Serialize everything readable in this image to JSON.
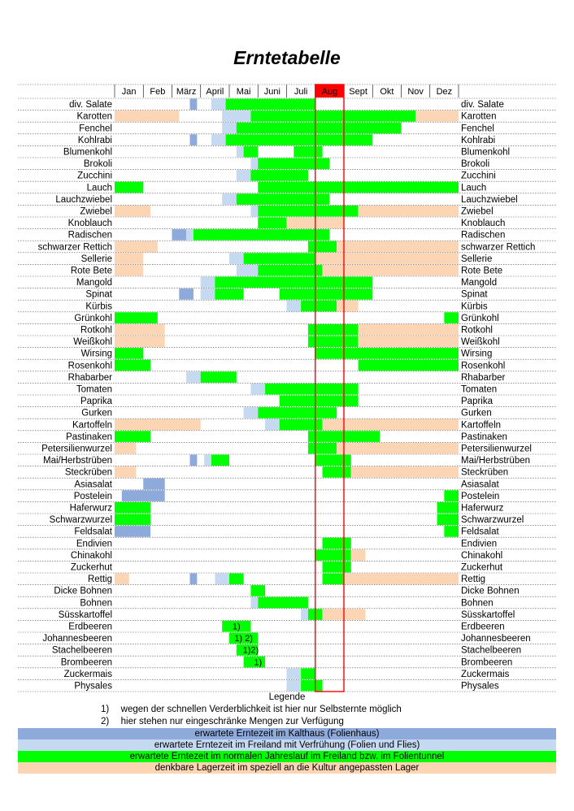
{
  "title": "Erntetabelle",
  "months": [
    "Jan",
    "Feb",
    "März",
    "April",
    "Mai",
    "Juni",
    "Juli",
    "Aug",
    "Sept",
    "Okt",
    "Nov",
    "Dez"
  ],
  "highlight_month": "Aug",
  "colors": {
    "kalthaus": "#8EAADB",
    "verfruehung": "#C5D9F1",
    "freiland": "#00FF00",
    "lager": "#FCD5B4",
    "highlight": "#FF0000"
  },
  "chart_data": {
    "type": "table",
    "time_unit": "Monat (Wochenraster)",
    "rows": [
      {
        "name": "div. Salate",
        "segments": [
          {
            "from": 10.5,
            "to": 11.5,
            "color": "kalthaus"
          },
          {
            "from": 13.5,
            "to": 15.5,
            "color": "verfruehung"
          },
          {
            "from": 15.5,
            "to": 28,
            "color": "freiland"
          }
        ]
      },
      {
        "name": "Karotten",
        "segments": [
          {
            "from": 0,
            "to": 9,
            "color": "lager"
          },
          {
            "from": 15,
            "to": 19,
            "color": "verfruehung"
          },
          {
            "from": 19,
            "to": 42,
            "color": "freiland"
          },
          {
            "from": 42,
            "to": 48,
            "color": "lager"
          }
        ]
      },
      {
        "name": "Fenchel",
        "segments": [
          {
            "from": 15,
            "to": 17,
            "color": "verfruehung"
          },
          {
            "from": 17,
            "to": 40,
            "color": "freiland"
          }
        ]
      },
      {
        "name": "Kohlrabi",
        "segments": [
          {
            "from": 10.5,
            "to": 11.5,
            "color": "kalthaus"
          },
          {
            "from": 13.5,
            "to": 15.5,
            "color": "verfruehung"
          },
          {
            "from": 15.5,
            "to": 36,
            "color": "freiland"
          }
        ]
      },
      {
        "name": "Blumenkohl",
        "segments": [
          {
            "from": 17,
            "to": 18,
            "color": "verfruehung"
          },
          {
            "from": 18,
            "to": 20,
            "color": "freiland"
          },
          {
            "from": 25,
            "to": 29,
            "color": "freiland"
          }
        ]
      },
      {
        "name": "Brokoli",
        "segments": [
          {
            "from": 19,
            "to": 20,
            "color": "verfruehung"
          },
          {
            "from": 20,
            "to": 30,
            "color": "freiland"
          }
        ]
      },
      {
        "name": "Zucchini",
        "segments": [
          {
            "from": 17,
            "to": 19,
            "color": "verfruehung"
          },
          {
            "from": 19,
            "to": 27,
            "color": "freiland"
          }
        ]
      },
      {
        "name": "Lauch",
        "segments": [
          {
            "from": 0,
            "to": 4,
            "color": "freiland"
          },
          {
            "from": 20,
            "to": 48,
            "color": "freiland"
          }
        ]
      },
      {
        "name": "Lauchzwiebel",
        "segments": [
          {
            "from": 15,
            "to": 17,
            "color": "verfruehung"
          },
          {
            "from": 17,
            "to": 30,
            "color": "freiland"
          }
        ]
      },
      {
        "name": "Zwiebel",
        "segments": [
          {
            "from": 0,
            "to": 5,
            "color": "lager"
          },
          {
            "from": 19,
            "to": 20,
            "color": "verfruehung"
          },
          {
            "from": 20,
            "to": 34,
            "color": "freiland"
          },
          {
            "from": 34,
            "to": 48,
            "color": "lager"
          }
        ]
      },
      {
        "name": "Knoblauch",
        "segments": [
          {
            "from": 20,
            "to": 24,
            "color": "freiland"
          },
          {
            "from": 24,
            "to": 32,
            "color": "lager"
          }
        ]
      },
      {
        "name": "Radischen",
        "segments": [
          {
            "from": 8,
            "to": 10,
            "color": "kalthaus"
          },
          {
            "from": 10,
            "to": 11,
            "color": "verfruehung"
          },
          {
            "from": 11,
            "to": 30,
            "color": "freiland"
          }
        ]
      },
      {
        "name": "schwarzer Rettich",
        "segments": [
          {
            "from": 0,
            "to": 6,
            "color": "lager"
          },
          {
            "from": 27,
            "to": 31,
            "color": "freiland"
          },
          {
            "from": 31,
            "to": 48,
            "color": "lager"
          }
        ]
      },
      {
        "name": "Sellerie",
        "segments": [
          {
            "from": 0,
            "to": 4,
            "color": "lager"
          },
          {
            "from": 16,
            "to": 18,
            "color": "verfruehung"
          },
          {
            "from": 18,
            "to": 28,
            "color": "freiland"
          },
          {
            "from": 28,
            "to": 48,
            "color": "lager"
          }
        ]
      },
      {
        "name": "Rote Bete",
        "segments": [
          {
            "from": 0,
            "to": 4,
            "color": "lager"
          },
          {
            "from": 17,
            "to": 20,
            "color": "verfruehung"
          },
          {
            "from": 20,
            "to": 29,
            "color": "freiland"
          },
          {
            "from": 29,
            "to": 48,
            "color": "lager"
          }
        ]
      },
      {
        "name": "Mangold",
        "segments": [
          {
            "from": 12,
            "to": 14,
            "color": "verfruehung"
          },
          {
            "from": 14,
            "to": 36,
            "color": "freiland"
          }
        ]
      },
      {
        "name": "Spinat",
        "segments": [
          {
            "from": 9,
            "to": 11,
            "color": "kalthaus"
          },
          {
            "from": 12,
            "to": 14,
            "color": "verfruehung"
          },
          {
            "from": 14,
            "to": 18,
            "color": "freiland"
          },
          {
            "from": 23,
            "to": 36,
            "color": "freiland"
          }
        ]
      },
      {
        "name": "Kürbis",
        "segments": [
          {
            "from": 24,
            "to": 26,
            "color": "verfruehung"
          },
          {
            "from": 26,
            "to": 31,
            "color": "freiland"
          },
          {
            "from": 31,
            "to": 34,
            "color": "lager"
          }
        ]
      },
      {
        "name": "Grünkohl",
        "segments": [
          {
            "from": 0,
            "to": 6,
            "color": "freiland"
          },
          {
            "from": 46,
            "to": 48,
            "color": "freiland"
          }
        ]
      },
      {
        "name": "Rotkohl",
        "segments": [
          {
            "from": 0,
            "to": 7,
            "color": "lager"
          },
          {
            "from": 27,
            "to": 34,
            "color": "freiland"
          },
          {
            "from": 34,
            "to": 48,
            "color": "lager"
          }
        ]
      },
      {
        "name": "Weißkohl",
        "segments": [
          {
            "from": 0,
            "to": 7,
            "color": "lager"
          },
          {
            "from": 27,
            "to": 34,
            "color": "freiland"
          },
          {
            "from": 34,
            "to": 48,
            "color": "lager"
          }
        ]
      },
      {
        "name": "Wirsing",
        "segments": [
          {
            "from": 0,
            "to": 4,
            "color": "freiland"
          },
          {
            "from": 28,
            "to": 48,
            "color": "freiland"
          }
        ]
      },
      {
        "name": "Rosenkohl",
        "segments": [
          {
            "from": 0,
            "to": 5,
            "color": "freiland"
          },
          {
            "from": 34,
            "to": 48,
            "color": "freiland"
          }
        ]
      },
      {
        "name": "Rhabarber",
        "segments": [
          {
            "from": 10,
            "to": 12,
            "color": "verfruehung"
          },
          {
            "from": 12,
            "to": 17,
            "color": "freiland"
          }
        ]
      },
      {
        "name": "Tomaten",
        "segments": [
          {
            "from": 19,
            "to": 21,
            "color": "verfruehung"
          },
          {
            "from": 21,
            "to": 34,
            "color": "freiland"
          }
        ]
      },
      {
        "name": "Paprika",
        "segments": [
          {
            "from": 23,
            "to": 34,
            "color": "freiland"
          }
        ]
      },
      {
        "name": "Gurken",
        "segments": [
          {
            "from": 18,
            "to": 20,
            "color": "verfruehung"
          },
          {
            "from": 20,
            "to": 31,
            "color": "freiland"
          }
        ]
      },
      {
        "name": "Kartoffeln",
        "segments": [
          {
            "from": 0,
            "to": 12,
            "color": "lager"
          },
          {
            "from": 21,
            "to": 23,
            "color": "verfruehung"
          },
          {
            "from": 23,
            "to": 29,
            "color": "freiland"
          },
          {
            "from": 29,
            "to": 48,
            "color": "lager"
          }
        ]
      },
      {
        "name": "Pastinaken",
        "segments": [
          {
            "from": 0,
            "to": 5,
            "color": "freiland"
          },
          {
            "from": 27,
            "to": 37,
            "color": "freiland"
          }
        ]
      },
      {
        "name": "Petersilienwurzel",
        "segments": [
          {
            "from": 0,
            "to": 3,
            "color": "lager"
          },
          {
            "from": 27,
            "to": 31,
            "color": "freiland"
          },
          {
            "from": 31,
            "to": 48,
            "color": "lager"
          }
        ]
      },
      {
        "name": "Mai/Herbstrüben",
        "segments": [
          {
            "from": 10.5,
            "to": 11.5,
            "color": "kalthaus"
          },
          {
            "from": 12.5,
            "to": 13.5,
            "color": "verfruehung"
          },
          {
            "from": 13.5,
            "to": 16,
            "color": "freiland"
          },
          {
            "from": 28,
            "to": 33,
            "color": "freiland"
          }
        ]
      },
      {
        "name": "Steckrüben",
        "segments": [
          {
            "from": 0,
            "to": 3,
            "color": "lager"
          },
          {
            "from": 29,
            "to": 33,
            "color": "freiland"
          },
          {
            "from": 33,
            "to": 48,
            "color": "lager"
          }
        ]
      },
      {
        "name": "Asiasalat",
        "segments": [
          {
            "from": 4,
            "to": 7,
            "color": "kalthaus"
          }
        ]
      },
      {
        "name": "Postelein",
        "segments": [
          {
            "from": 1,
            "to": 7,
            "color": "kalthaus"
          },
          {
            "from": 46,
            "to": 48,
            "color": "freiland"
          }
        ]
      },
      {
        "name": "Haferwurz",
        "segments": [
          {
            "from": 0,
            "to": 5,
            "color": "freiland"
          },
          {
            "from": 45,
            "to": 48,
            "color": "freiland"
          }
        ]
      },
      {
        "name": "Schwarzwurzel",
        "segments": [
          {
            "from": 0,
            "to": 5,
            "color": "freiland"
          },
          {
            "from": 45,
            "to": 48,
            "color": "freiland"
          }
        ]
      },
      {
        "name": "Feldsalat",
        "segments": [
          {
            "from": 0,
            "to": 5,
            "color": "kalthaus"
          },
          {
            "from": 46,
            "to": 48,
            "color": "freiland"
          }
        ]
      },
      {
        "name": "Endivien",
        "segments": [
          {
            "from": 29,
            "to": 33,
            "color": "freiland"
          }
        ]
      },
      {
        "name": "Chinakohl",
        "segments": [
          {
            "from": 28,
            "to": 33,
            "color": "freiland"
          },
          {
            "from": 33,
            "to": 35,
            "color": "lager"
          }
        ]
      },
      {
        "name": "Zuckerhut",
        "segments": [
          {
            "from": 29,
            "to": 33,
            "color": "freiland"
          }
        ]
      },
      {
        "name": "Rettig",
        "segments": [
          {
            "from": 0,
            "to": 2,
            "color": "lager"
          },
          {
            "from": 10.5,
            "to": 11.5,
            "color": "kalthaus"
          },
          {
            "from": 14,
            "to": 16,
            "color": "verfruehung"
          },
          {
            "from": 16,
            "to": 18,
            "color": "freiland"
          },
          {
            "from": 29,
            "to": 32,
            "color": "freiland"
          },
          {
            "from": 32,
            "to": 48,
            "color": "lager"
          }
        ]
      },
      {
        "name": "Dicke Bohnen",
        "segments": [
          {
            "from": 19,
            "to": 21,
            "color": "freiland"
          }
        ]
      },
      {
        "name": "Bohnen",
        "segments": [
          {
            "from": 19,
            "to": 20,
            "color": "verfruehung"
          },
          {
            "from": 20,
            "to": 27,
            "color": "freiland"
          }
        ]
      },
      {
        "name": "Süsskartoffel",
        "segments": [
          {
            "from": 26,
            "to": 27,
            "color": "verfruehung"
          },
          {
            "from": 27,
            "to": 29,
            "color": "freiland"
          },
          {
            "from": 29,
            "to": 35,
            "color": "lager"
          }
        ]
      },
      {
        "name": "Erdbeeren",
        "segments": [
          {
            "from": 15,
            "to": 19,
            "color": "freiland"
          }
        ],
        "note": "1)"
      },
      {
        "name": "Johannesbeeren",
        "segments": [
          {
            "from": 16,
            "to": 20,
            "color": "freiland"
          }
        ],
        "note": "1) 2)"
      },
      {
        "name": "Stachelbeeren",
        "segments": [
          {
            "from": 17,
            "to": 20,
            "color": "freiland"
          }
        ],
        "note": "1)2)"
      },
      {
        "name": "Brombeeren",
        "segments": [
          {
            "from": 18,
            "to": 21,
            "color": "freiland"
          }
        ],
        "note": "1)"
      },
      {
        "name": "Zuckermais",
        "segments": [
          {
            "from": 24,
            "to": 26,
            "color": "verfruehung"
          },
          {
            "from": 26,
            "to": 28,
            "color": "freiland"
          }
        ]
      },
      {
        "name": "Physales",
        "segments": [
          {
            "from": 24,
            "to": 26,
            "color": "verfruehung"
          },
          {
            "from": 26,
            "to": 29,
            "color": "freiland"
          }
        ]
      }
    ]
  },
  "legend": {
    "heading": "Legende",
    "notes": [
      {
        "mark": "1)",
        "text": "wegen der schnellen Verderblichkeit ist hier nur Selbsternte möglich"
      },
      {
        "mark": "2)",
        "text": "hier stehen nur eingeschränke Mengen zur Verfügung"
      }
    ],
    "bands": [
      {
        "color": "kalthaus",
        "text": "erwartete Erntezeit im Kalthaus (Folienhaus)"
      },
      {
        "color": "verfruehung",
        "text": "erwartete Erntezeit im Freiland mit Verfrühung (Folien und Flies)"
      },
      {
        "color": "freiland",
        "text": "erwartete Erntezeit im normalen Jahreslauf im Freiland bzw. im Folientunnel"
      },
      {
        "color": "lager",
        "text": "denkbare Lagerzeit im speziell an die Kultur angepassten Lager"
      }
    ]
  }
}
